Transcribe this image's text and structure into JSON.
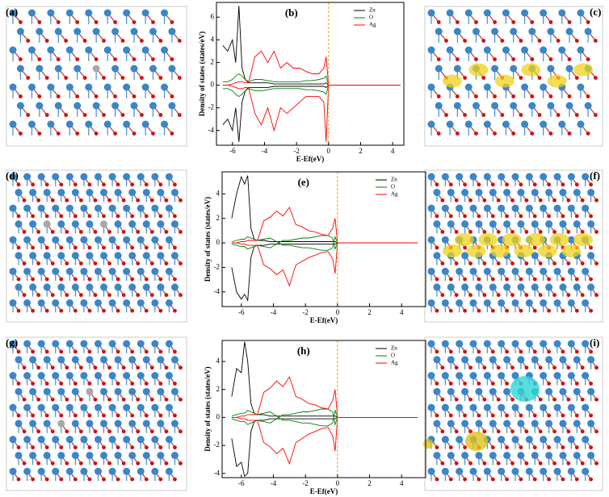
{
  "structure_panels": [
    "(a)",
    "(c)",
    "(d)",
    "(f)",
    "(g)",
    "(i)"
  ],
  "chart_data": [
    {
      "type": "line",
      "title": "(b)",
      "xlabel": "E-Ef(eV)",
      "ylabel": "Density of states (states/eV)",
      "xlim": [
        -7,
        4.7
      ],
      "ylim": [
        -5.3,
        7.3
      ],
      "xticks": [
        -6,
        -4,
        -2,
        0,
        2,
        4
      ],
      "yticks": [
        -4,
        -2,
        0,
        2,
        4,
        6
      ],
      "fermi_level": 0,
      "x": [
        -6.6,
        -6.3,
        -6.0,
        -5.8,
        -5.6,
        -5.4,
        -5.2,
        -5.0,
        -4.6,
        -4.2,
        -3.8,
        -3.4,
        -3.0,
        -2.6,
        -2.2,
        -1.8,
        -1.4,
        -1.0,
        -0.6,
        -0.3,
        -0.15,
        0,
        0.3,
        1,
        2,
        3,
        4,
        4.5
      ],
      "series": [
        {
          "name": "Zn",
          "color": "#000000",
          "values": [
            3.5,
            3,
            4,
            2,
            7,
            1.5,
            0.5,
            0.2,
            0.2,
            0.2,
            0.2,
            0.1,
            0.1,
            0.1,
            0.1,
            0.1,
            0.1,
            0.1,
            0.1,
            0.1,
            0.2,
            0,
            0,
            0,
            0,
            0,
            0,
            0
          ],
          "values_down": [
            -3.5,
            -3,
            -4,
            -2,
            -5,
            -1.5,
            -0.5,
            -0.2,
            -0.2,
            -0.2,
            -0.2,
            -0.1,
            -0.1,
            -0.1,
            -0.1,
            -0.1,
            -0.1,
            -0.1,
            -0.1,
            -0.1,
            -0.2,
            0,
            0,
            0,
            0,
            0,
            0,
            0
          ]
        },
        {
          "name": "O",
          "color": "#008000",
          "values": [
            0.3,
            0.3,
            0.5,
            0.8,
            1,
            0.8,
            0.5,
            0.3,
            0.5,
            0.5,
            0.4,
            0.3,
            0.3,
            0.3,
            0.3,
            0.3,
            0.4,
            0.4,
            0.5,
            0.6,
            0.8,
            0,
            0,
            0,
            0,
            0,
            0,
            0
          ],
          "values_down": [
            -0.3,
            -0.3,
            -0.5,
            -0.8,
            -1,
            -0.8,
            -0.5,
            -0.3,
            -0.5,
            -0.5,
            -0.4,
            -0.3,
            -0.3,
            -0.3,
            -0.3,
            -0.3,
            -0.4,
            -0.4,
            -0.5,
            -0.6,
            -0.8,
            0,
            0,
            0,
            0,
            0,
            0,
            0
          ]
        },
        {
          "name": "Ag",
          "color": "#ff0000",
          "values": [
            0,
            0,
            0.1,
            0.2,
            0.3,
            0.3,
            0.2,
            0.2,
            2.5,
            3,
            2,
            3,
            1.5,
            2,
            1.5,
            1.5,
            1.2,
            1,
            1,
            1.5,
            2.5,
            0,
            0,
            0,
            0,
            0,
            0,
            0
          ],
          "values_down": [
            0,
            0,
            -0.1,
            -0.2,
            -0.3,
            -0.3,
            -0.2,
            -0.2,
            -2.5,
            -3.5,
            -2,
            -4,
            -2,
            -2.5,
            -2,
            -1.5,
            -1,
            -1,
            -1,
            -1.5,
            -5,
            0,
            0,
            0,
            0,
            0,
            0,
            0
          ]
        }
      ]
    },
    {
      "type": "line",
      "title": "(e)",
      "xlabel": "E-Ef(eV)",
      "ylabel": "Density of states (states/eV)",
      "xlim": [
        -7.2,
        5.5
      ],
      "ylim": [
        -5.2,
        5.8
      ],
      "xticks": [
        -6,
        -4,
        -2,
        0,
        2,
        4
      ],
      "yticks": [
        -4,
        -2,
        0,
        2,
        4
      ],
      "fermi_level": 0,
      "x": [
        -6.6,
        -6.3,
        -6.0,
        -5.8,
        -5.6,
        -5.4,
        -5.2,
        -5.0,
        -4.6,
        -4.2,
        -3.8,
        -3.4,
        -3.0,
        -2.6,
        -2.2,
        -1.8,
        -1.4,
        -1.0,
        -0.6,
        -0.3,
        -0.15,
        0,
        0.3,
        1,
        2,
        3,
        4,
        5
      ],
      "series": [
        {
          "name": "Zn",
          "color": "#000000",
          "values": [
            2,
            4,
            5.4,
            4.8,
            5.5,
            1.2,
            0.3,
            0.2,
            0.2,
            0.1,
            0.1,
            0.1,
            0.1,
            0.1,
            0.1,
            0.1,
            0.1,
            0.1,
            0.1,
            0.1,
            0.1,
            0,
            0,
            0,
            0,
            0,
            0,
            0
          ],
          "values_down": [
            -2,
            -4,
            -4.6,
            -4.2,
            -4.7,
            -1.2,
            -0.3,
            -0.2,
            -0.2,
            -0.1,
            -0.1,
            -0.1,
            -0.1,
            -0.1,
            -0.1,
            -0.1,
            -0.1,
            -0.1,
            -0.1,
            -0.1,
            -0.1,
            0,
            0,
            0,
            0,
            0,
            0,
            0
          ]
        },
        {
          "name": "O",
          "color": "#008000",
          "values": [
            0.1,
            0.2,
            0.3,
            0.3,
            0.5,
            0.4,
            0.3,
            0.2,
            0.3,
            0.4,
            0.1,
            -0.2,
            -0.2,
            -0.3,
            -0.4,
            -0.4,
            -0.5,
            -0.6,
            -0.6,
            -0.4,
            0.5,
            0,
            0,
            0,
            0,
            0,
            0,
            0
          ],
          "values_down": [
            -0.1,
            -0.2,
            -0.3,
            -0.3,
            -0.5,
            -0.4,
            -0.3,
            -0.2,
            -0.3,
            -0.4,
            -0.1,
            0.2,
            0.2,
            0.3,
            0.4,
            0.4,
            0.5,
            0.6,
            0.6,
            0.4,
            -0.5,
            0,
            0,
            0,
            0,
            0,
            0,
            0
          ]
        },
        {
          "name": "Ag",
          "color": "#ff0000",
          "values": [
            0,
            0,
            0.1,
            0.1,
            0.2,
            0.2,
            0.2,
            0.2,
            1.8,
            2.1,
            2.6,
            2.2,
            2.9,
            1.5,
            1.3,
            1,
            0.9,
            0.7,
            0.6,
            1.2,
            2,
            0,
            0,
            0,
            0,
            0,
            0,
            0
          ],
          "values_down": [
            0,
            0,
            -0.1,
            -0.1,
            -0.2,
            -0.2,
            -0.2,
            -0.2,
            -1.8,
            -2.1,
            -2.6,
            -2.2,
            -3.5,
            -1.8,
            -1.5,
            -1.2,
            -1,
            -0.8,
            -0.7,
            -1.3,
            -2.5,
            0,
            0,
            0,
            0,
            0,
            0,
            0
          ]
        }
      ]
    },
    {
      "type": "line",
      "title": "(h)",
      "xlabel": "E-Ef(eV)",
      "ylabel": "Density of states (states/eV)",
      "xlim": [
        -7.2,
        5.5
      ],
      "ylim": [
        -4.3,
        5.5
      ],
      "xticks": [
        -6,
        -4,
        -2,
        0,
        2,
        4
      ],
      "yticks": [
        -4,
        -2,
        0,
        2,
        4
      ],
      "fermi_level": 0,
      "x": [
        -6.6,
        -6.3,
        -6.0,
        -5.8,
        -5.6,
        -5.4,
        -5.2,
        -5.0,
        -4.6,
        -4.2,
        -3.8,
        -3.4,
        -3.0,
        -2.6,
        -2.2,
        -1.8,
        -1.4,
        -1.0,
        -0.6,
        -0.3,
        -0.15,
        0,
        0.3,
        1,
        2,
        3,
        4,
        5
      ],
      "series": [
        {
          "name": "Zn",
          "color": "#000000",
          "values": [
            1.5,
            3.5,
            3.2,
            5.4,
            4,
            1,
            0.3,
            0.2,
            0.2,
            0.1,
            0.1,
            0.1,
            0.1,
            0.1,
            0.1,
            0.1,
            0.1,
            0.1,
            0.1,
            0.1,
            0.1,
            0,
            0,
            0,
            0,
            0,
            0,
            0
          ],
          "values_down": [
            -1.5,
            -3.5,
            -3.2,
            -4.2,
            -4,
            -1,
            -0.3,
            -0.2,
            -0.2,
            -0.1,
            -0.1,
            -0.1,
            -0.1,
            -0.1,
            -0.1,
            -0.1,
            -0.1,
            -0.1,
            -0.1,
            -0.1,
            -0.1,
            0,
            0,
            0,
            0,
            0,
            0,
            0
          ]
        },
        {
          "name": "O",
          "color": "#008000",
          "values": [
            0.1,
            0.2,
            0.3,
            0.3,
            0.5,
            0.4,
            0.3,
            0.2,
            0.3,
            0.4,
            0.1,
            -0.2,
            -0.2,
            -0.3,
            -0.4,
            -0.4,
            -0.5,
            -0.6,
            -0.6,
            -0.4,
            0.5,
            0,
            0,
            0,
            0,
            0,
            0,
            0
          ],
          "values_down": [
            -0.1,
            -0.2,
            -0.3,
            -0.3,
            -0.5,
            -0.4,
            -0.3,
            -0.2,
            -0.3,
            -0.4,
            -0.1,
            0.2,
            0.2,
            0.3,
            0.4,
            0.4,
            0.5,
            0.6,
            0.6,
            0.4,
            -0.5,
            0,
            0,
            0,
            0,
            0,
            0,
            0
          ]
        },
        {
          "name": "Ag",
          "color": "#ff0000",
          "values": [
            0,
            0,
            0.1,
            0.1,
            0.2,
            0.2,
            0.2,
            0.2,
            1.8,
            2.1,
            2.6,
            2.2,
            2.9,
            1.5,
            1.3,
            1,
            0.9,
            0.7,
            0.6,
            1.2,
            2,
            0,
            0,
            0,
            0,
            0,
            0,
            0
          ],
          "values_down": [
            0,
            0,
            -0.1,
            -0.1,
            -0.2,
            -0.2,
            -0.2,
            -0.2,
            -1.8,
            -2.1,
            -2.6,
            -2.2,
            -3.3,
            -1.8,
            -1.5,
            -1.2,
            -1,
            -0.8,
            -0.7,
            -1.3,
            -2.4,
            0,
            0,
            0,
            0,
            0,
            0,
            0
          ]
        }
      ]
    }
  ]
}
